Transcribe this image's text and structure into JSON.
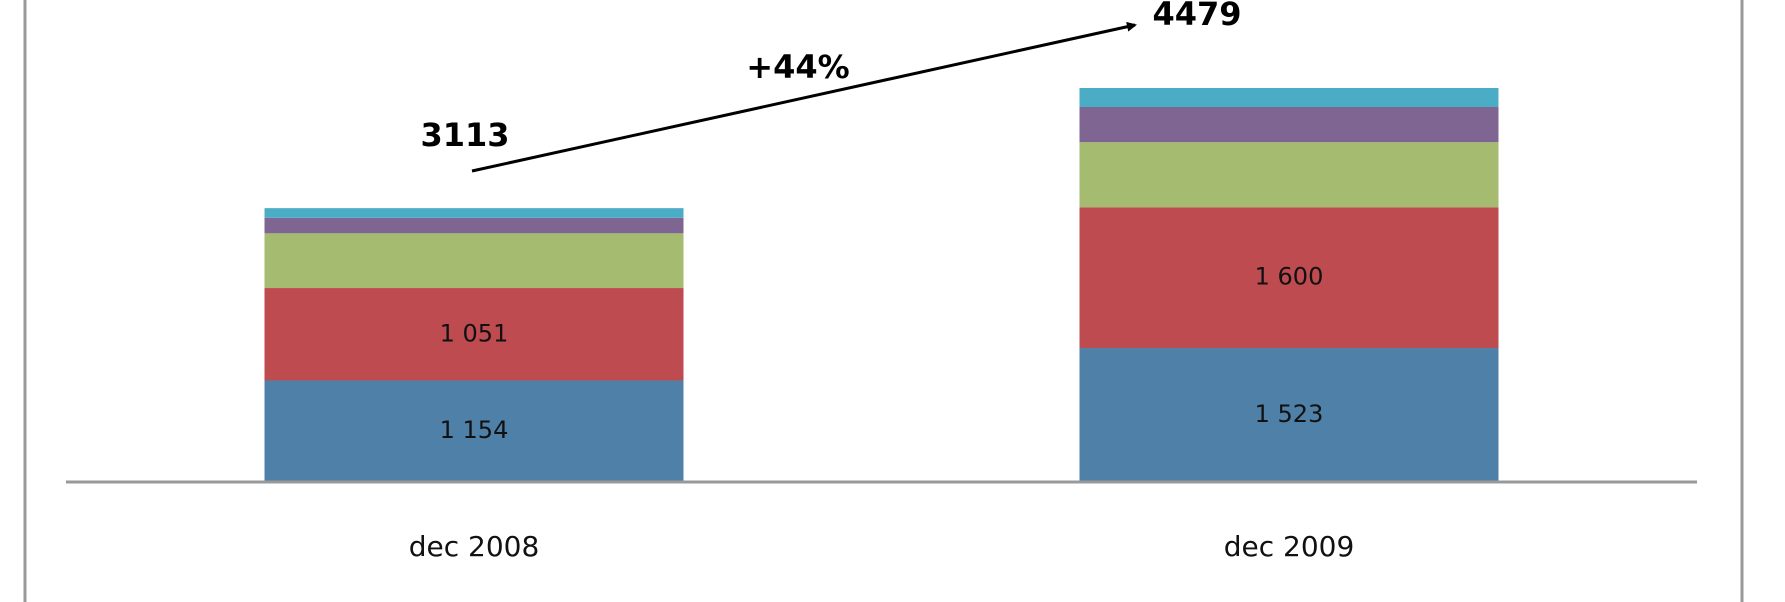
{
  "chart_data": {
    "type": "stacked_bar",
    "categories": [
      "dec 2008",
      "dec 2009"
    ],
    "series": [
      {
        "color": "#4f81a8",
        "values": [
          1154,
          1523
        ],
        "value_labels": [
          "1 154",
          "1 523"
        ]
      },
      {
        "color": "#be4b50",
        "values": [
          1051,
          1600
        ],
        "value_labels": [
          "1 051",
          "1 600"
        ]
      },
      {
        "color": "#a5bb70",
        "values": [
          622,
          740
        ]
      },
      {
        "color": "#7f6592",
        "values": [
          176,
          400
        ]
      },
      {
        "color": "#4bacc6",
        "values": [
          110,
          216
        ]
      }
    ],
    "totals": [
      3113,
      4479
    ],
    "annotation": "+44%"
  }
}
